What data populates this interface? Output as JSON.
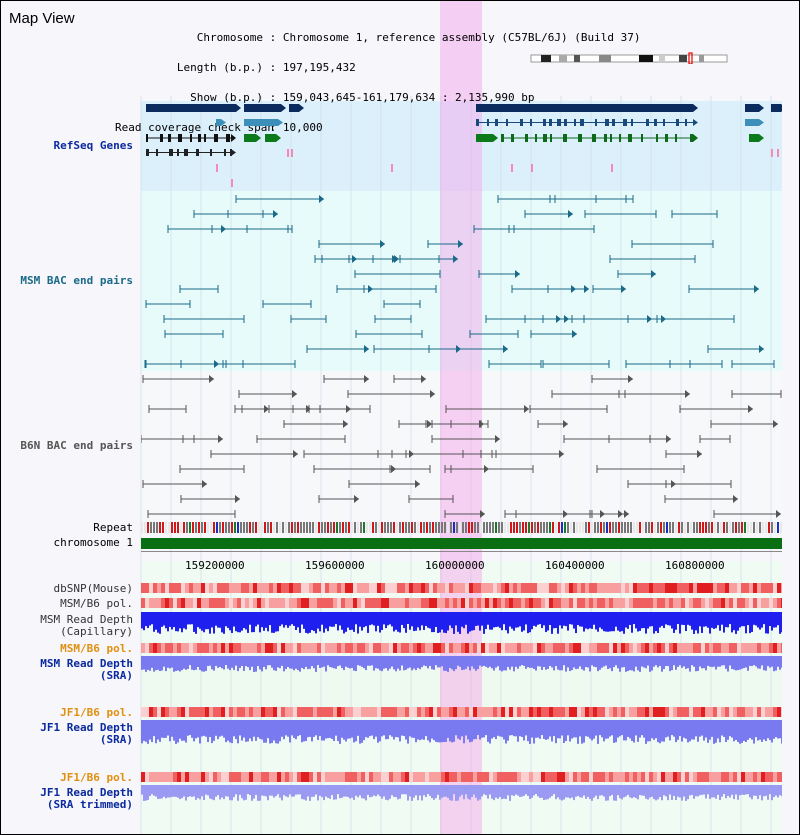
{
  "app": {
    "title": "Map View"
  },
  "info": {
    "chromosome_label": "Chromosome",
    "chromosome_value": "Chromosome 1, reference assembly (C57BL/6J) (Build 37)",
    "length_label": "Length (b.p.)",
    "length_value": "197,195,432",
    "show_label": "Show (b.p.)",
    "show_value": "159,043,645-161,179,634 : 2,135,990 bp",
    "coverage_label": "Read coverage check span",
    "coverage_value": "10,000"
  },
  "tracks": {
    "refseq": "RefSeq Genes",
    "msm_bac": "MSM BAC end pairs",
    "b6n_bac": "B6N BAC end pairs",
    "repeat": "Repeat",
    "chromosome": "chromosome 1",
    "dbsnp": "dbSNP(Mouse)",
    "msm_b6_pol": "MSM/B6 pol.",
    "msm_depth_cap": "MSM Read Depth\n(Capillary)",
    "msm_b6_pol2": "MSM/B6 pol.",
    "msm_depth_sra": "MSM Read Depth\n(SRA)",
    "jf1_b6_pol": "JF1/B6 pol.",
    "jf1_depth_sra": "JF1 Read Depth\n(SRA)",
    "jf1_b6_pol2": "JF1/B6 pol.",
    "jf1_depth_trim": "JF1 Read Depth\n(SRA trimmed)"
  },
  "axis": {
    "ticks": [
      "159200000",
      "159600000",
      "160000000",
      "160400000",
      "160800000"
    ]
  },
  "colors": {
    "refseq_bg": "#dff0fa",
    "msm_bg": "#e6fafa",
    "b6n_bg": "#f4f6f8",
    "highlight": "#f4c0ea",
    "gene_navy": "#0b2a5e",
    "gene_teal": "#3b8fb8",
    "gene_green": "#0c7a1a",
    "bac_teal": "#1a6a88",
    "bac_gray": "#555555",
    "chrom_green": "#0a6e12",
    "depth_blue": "#1f1ff0",
    "depth_light": "#7878f0",
    "label_blue": "#0b2a9e",
    "label_orange": "#e09010"
  }
}
